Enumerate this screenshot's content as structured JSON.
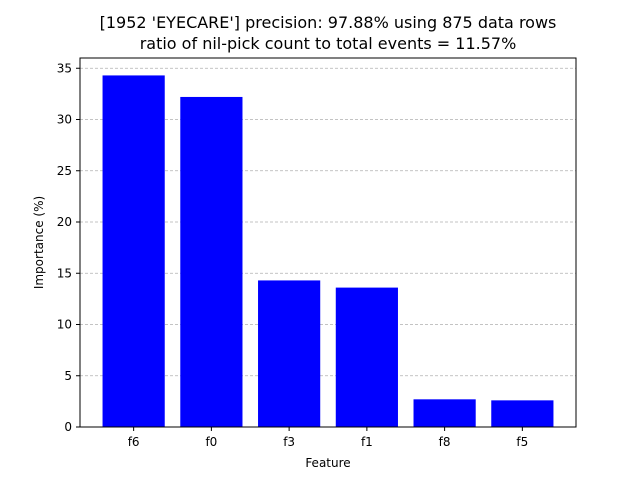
{
  "chart_data": {
    "type": "bar",
    "title": "[1952 'EYECARE'] precision: 97.88% using 875 data rows",
    "subtitle": "ratio of nil-pick count to total events = 11.57%",
    "xlabel": "Feature",
    "ylabel": "Importance (%)",
    "categories": [
      "f6",
      "f0",
      "f3",
      "f1",
      "f8",
      "f5"
    ],
    "values": [
      34.3,
      32.2,
      14.3,
      13.6,
      2.7,
      2.6
    ],
    "ylim": [
      0,
      36
    ],
    "yticks": [
      "0",
      "5",
      "10",
      "15",
      "20",
      "25",
      "30",
      "35"
    ],
    "grid": "y-dashed",
    "bar_color": "#0000ff",
    "grid_color": "#b0b0b0"
  }
}
